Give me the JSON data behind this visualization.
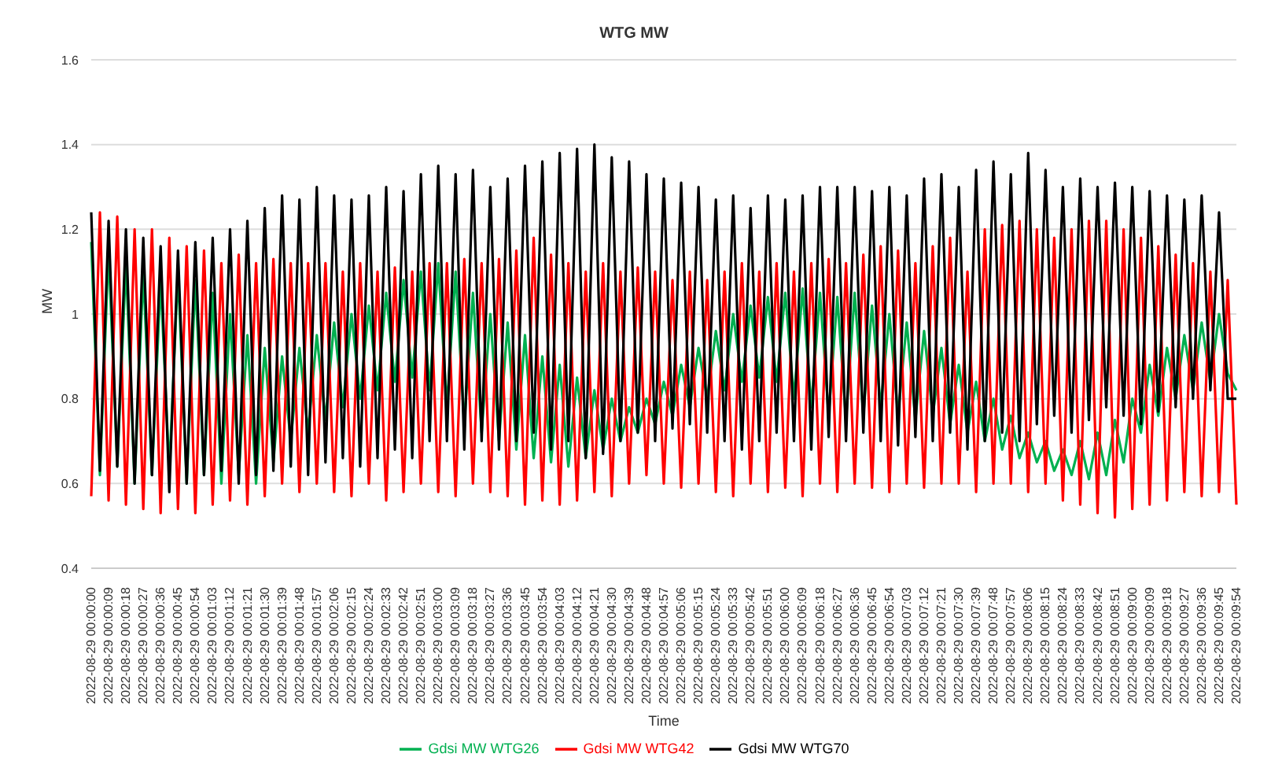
{
  "chart_data": {
    "type": "line",
    "title": "WTG MW",
    "xlabel": "Time",
    "ylabel": "MW",
    "categories": [
      "2022-08-29 00:00:00",
      null,
      "2022-08-29 00:00:09",
      null,
      "2022-08-29 00:00:18",
      null,
      "2022-08-29 00:00:27",
      null,
      "2022-08-29 00:00:36",
      null,
      "2022-08-29 00:00:45",
      null,
      "2022-08-29 00:00:54",
      null,
      "2022-08-29 00:01:03",
      null,
      "2022-08-29 00:01:12",
      null,
      "2022-08-29 00:01:21",
      null,
      "2022-08-29 00:01:30",
      null,
      "2022-08-29 00:01:39",
      null,
      "2022-08-29 00:01:48",
      null,
      "2022-08-29 00:01:57",
      null,
      "2022-08-29 00:02:06",
      null,
      "2022-08-29 00:02:15",
      null,
      "2022-08-29 00:02:24",
      null,
      "2022-08-29 00:02:33",
      null,
      "2022-08-29 00:02:42",
      null,
      "2022-08-29 00:02:51",
      null,
      "2022-08-29 00:03:00",
      null,
      "2022-08-29 00:03:09",
      null,
      "2022-08-29 00:03:18",
      null,
      "2022-08-29 00:03:27",
      null,
      "2022-08-29 00:03:36",
      null,
      "2022-08-29 00:03:45",
      null,
      "2022-08-29 00:03:54",
      null,
      "2022-08-29 00:04:03",
      null,
      "2022-08-29 00:04:12",
      null,
      "2022-08-29 00:04:21",
      null,
      "2022-08-29 00:04:30",
      null,
      "2022-08-29 00:04:39",
      null,
      "2022-08-29 00:04:48",
      null,
      "2022-08-29 00:04:57",
      null,
      "2022-08-29 00:05:06",
      null,
      "2022-08-29 00:05:15",
      null,
      "2022-08-29 00:05:24",
      null,
      "2022-08-29 00:05:33",
      null,
      "2022-08-29 00:05:42",
      null,
      "2022-08-29 00:05:51",
      null,
      "2022-08-29 00:06:00",
      null,
      "2022-08-29 00:06:09",
      null,
      "2022-08-29 00:06:18",
      null,
      "2022-08-29 00:06:27",
      null,
      "2022-08-29 00:06:36",
      null,
      "2022-08-29 00:06:45",
      null,
      "2022-08-29 00:06:54",
      null,
      "2022-08-29 00:07:03",
      null,
      "2022-08-29 00:07:12",
      null,
      "2022-08-29 00:07:21",
      null,
      "2022-08-29 00:07:30",
      null,
      "2022-08-29 00:07:39",
      null,
      "2022-08-29 00:07:48",
      null,
      "2022-08-29 00:07:57",
      null,
      "2022-08-29 00:08:06",
      null,
      "2022-08-29 00:08:15",
      null,
      "2022-08-29 00:08:24",
      null,
      "2022-08-29 00:08:33",
      null,
      "2022-08-29 00:08:42",
      null,
      "2022-08-29 00:08:51",
      null,
      "2022-08-29 00:09:00",
      null,
      "2022-08-29 00:09:09",
      null,
      "2022-08-29 00:09:18",
      null,
      "2022-08-29 00:09:27",
      null,
      "2022-08-29 00:09:36",
      null,
      "2022-08-29 00:09:45",
      null,
      "2022-08-29 00:09:54"
    ],
    "series": [
      {
        "name": "Gdsi MW WTG26",
        "color": "#00b050",
        "values": [
          1.17,
          0.62,
          1.15,
          0.64,
          1.12,
          0.6,
          1.1,
          0.62,
          1.08,
          0.63,
          1.1,
          0.6,
          1.08,
          0.62,
          1.05,
          0.6,
          1.0,
          0.62,
          0.95,
          0.6,
          0.92,
          0.65,
          0.9,
          0.7,
          0.92,
          0.72,
          0.95,
          0.75,
          0.98,
          0.78,
          1.0,
          0.8,
          1.02,
          0.82,
          1.05,
          0.84,
          1.08,
          0.85,
          1.1,
          0.82,
          1.12,
          0.78,
          1.1,
          0.74,
          1.05,
          0.72,
          1.0,
          0.7,
          0.98,
          0.68,
          0.95,
          0.66,
          0.9,
          0.65,
          0.88,
          0.64,
          0.85,
          0.66,
          0.82,
          0.68,
          0.8,
          0.7,
          0.78,
          0.72,
          0.8,
          0.74,
          0.84,
          0.76,
          0.88,
          0.78,
          0.92,
          0.8,
          0.96,
          0.82,
          1.0,
          0.84,
          1.02,
          0.85,
          1.04,
          0.84,
          1.05,
          0.8,
          1.06,
          0.78,
          1.05,
          0.76,
          1.04,
          0.75,
          1.05,
          0.76,
          1.02,
          0.78,
          1.0,
          0.76,
          0.98,
          0.75,
          0.96,
          0.76,
          0.92,
          0.74,
          0.88,
          0.72,
          0.84,
          0.7,
          0.8,
          0.68,
          0.76,
          0.66,
          0.72,
          0.65,
          0.7,
          0.63,
          0.68,
          0.62,
          0.7,
          0.61,
          0.72,
          0.62,
          0.75,
          0.65,
          0.8,
          0.72,
          0.88,
          0.76,
          0.92,
          0.8,
          0.95,
          0.82,
          0.98,
          0.84,
          1.0,
          0.86,
          0.82
        ]
      },
      {
        "name": "Gdsi MW WTG42",
        "color": "#ff0000",
        "values": [
          0.57,
          1.24,
          0.56,
          1.23,
          0.55,
          1.2,
          0.54,
          1.2,
          0.53,
          1.18,
          0.54,
          1.16,
          0.53,
          1.15,
          0.55,
          1.12,
          0.56,
          1.14,
          0.55,
          1.12,
          0.57,
          1.13,
          0.6,
          1.12,
          0.58,
          1.12,
          0.6,
          1.12,
          0.58,
          1.1,
          0.57,
          1.12,
          0.6,
          1.1,
          0.56,
          1.11,
          0.58,
          1.1,
          0.6,
          1.12,
          0.58,
          1.12,
          0.57,
          1.13,
          0.6,
          1.12,
          0.58,
          1.13,
          0.57,
          1.15,
          0.55,
          1.18,
          0.56,
          1.14,
          0.55,
          1.12,
          0.56,
          1.1,
          0.58,
          1.12,
          0.57,
          1.1,
          0.6,
          1.11,
          0.62,
          1.1,
          0.6,
          1.08,
          0.59,
          1.1,
          0.6,
          1.08,
          0.58,
          1.1,
          0.57,
          1.12,
          0.6,
          1.1,
          0.58,
          1.12,
          0.59,
          1.1,
          0.57,
          1.12,
          0.6,
          1.13,
          0.58,
          1.12,
          0.6,
          1.14,
          0.59,
          1.16,
          0.58,
          1.15,
          0.6,
          1.12,
          0.59,
          1.16,
          0.6,
          1.18,
          0.6,
          1.1,
          0.58,
          1.2,
          0.6,
          1.21,
          0.6,
          1.22,
          0.58,
          1.2,
          0.6,
          1.18,
          0.56,
          1.2,
          0.55,
          1.22,
          0.53,
          1.22,
          0.52,
          1.2,
          0.54,
          1.18,
          0.55,
          1.16,
          0.56,
          1.14,
          0.58,
          1.12,
          0.57,
          1.1,
          0.58,
          1.08,
          0.55
        ]
      },
      {
        "name": "Gdsi MW WTG70",
        "color": "#000000",
        "values": [
          1.24,
          0.63,
          1.22,
          0.64,
          1.2,
          0.6,
          1.18,
          0.62,
          1.16,
          0.58,
          1.15,
          0.6,
          1.17,
          0.62,
          1.18,
          0.63,
          1.2,
          0.6,
          1.22,
          0.62,
          1.25,
          0.63,
          1.28,
          0.64,
          1.27,
          0.62,
          1.3,
          0.65,
          1.28,
          0.66,
          1.27,
          0.64,
          1.28,
          0.66,
          1.3,
          0.68,
          1.29,
          0.66,
          1.33,
          0.7,
          1.35,
          0.7,
          1.33,
          0.68,
          1.34,
          0.7,
          1.3,
          0.68,
          1.32,
          0.7,
          1.35,
          0.72,
          1.36,
          0.68,
          1.38,
          0.7,
          1.39,
          0.66,
          1.4,
          0.67,
          1.37,
          0.7,
          1.36,
          0.72,
          1.33,
          0.7,
          1.32,
          0.73,
          1.31,
          0.74,
          1.3,
          0.72,
          1.27,
          0.7,
          1.28,
          0.68,
          1.25,
          0.7,
          1.28,
          0.72,
          1.27,
          0.7,
          1.28,
          0.68,
          1.3,
          0.71,
          1.3,
          0.7,
          1.3,
          0.72,
          1.29,
          0.7,
          1.3,
          0.69,
          1.28,
          0.71,
          1.32,
          0.7,
          1.33,
          0.72,
          1.3,
          0.68,
          1.34,
          0.7,
          1.36,
          0.72,
          1.33,
          0.7,
          1.38,
          0.74,
          1.34,
          0.76,
          1.3,
          0.72,
          1.32,
          0.75,
          1.3,
          0.78,
          1.31,
          0.76,
          1.3,
          0.74,
          1.29,
          0.77,
          1.28,
          0.78,
          1.27,
          0.8,
          1.28,
          0.82,
          1.24,
          0.8,
          0.8
        ]
      }
    ],
    "ylim": [
      0.4,
      1.6
    ],
    "yticks": [
      0.4,
      0.6,
      0.8,
      1,
      1.2,
      1.4,
      1.6
    ],
    "grid": "y",
    "legend": "bottom",
    "marker": "none",
    "line_style": "solid"
  }
}
